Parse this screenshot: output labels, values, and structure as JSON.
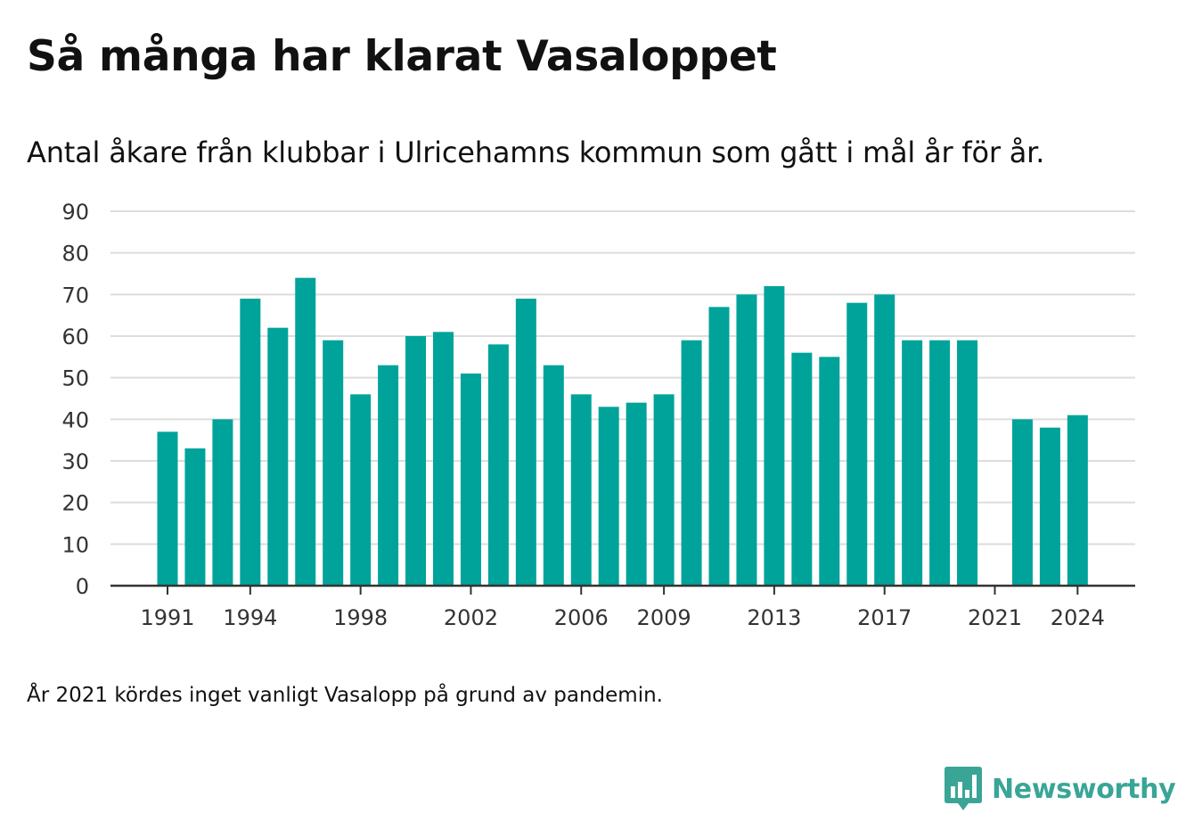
{
  "title": "Så många har klarat Vasaloppet",
  "subtitle": "Antal åkare från klubbar i Ulricehamns kommun som gått i mål år för år.",
  "note": "År 2021 kördes inget vanligt Vasalopp på grund av pandemin.",
  "brand": {
    "name": "Newsworthy",
    "color": "#3aa597",
    "icon": "newsworthy-logo-icon"
  },
  "chart_data": {
    "type": "bar",
    "color": "#00a39a",
    "categories": [
      1991,
      1992,
      1993,
      1994,
      1995,
      1996,
      1997,
      1998,
      1999,
      2000,
      2001,
      2002,
      2003,
      2004,
      2005,
      2006,
      2007,
      2008,
      2009,
      2010,
      2011,
      2012,
      2013,
      2014,
      2015,
      2016,
      2017,
      2018,
      2019,
      2020,
      2021,
      2022,
      2023,
      2024
    ],
    "values": [
      37,
      33,
      40,
      69,
      62,
      74,
      59,
      46,
      53,
      60,
      61,
      51,
      58,
      69,
      53,
      46,
      43,
      44,
      46,
      59,
      67,
      70,
      72,
      56,
      55,
      68,
      70,
      59,
      59,
      59,
      null,
      40,
      38,
      41
    ],
    "x_ticks": [
      1991,
      1994,
      1998,
      2002,
      2006,
      2009,
      2013,
      2017,
      2021,
      2024
    ],
    "y_ticks": [
      0,
      10,
      20,
      30,
      40,
      50,
      60,
      70,
      80,
      90
    ],
    "ylim": [
      0,
      90
    ],
    "xlabel": "",
    "ylabel": "",
    "grid": true,
    "legend": "none"
  }
}
